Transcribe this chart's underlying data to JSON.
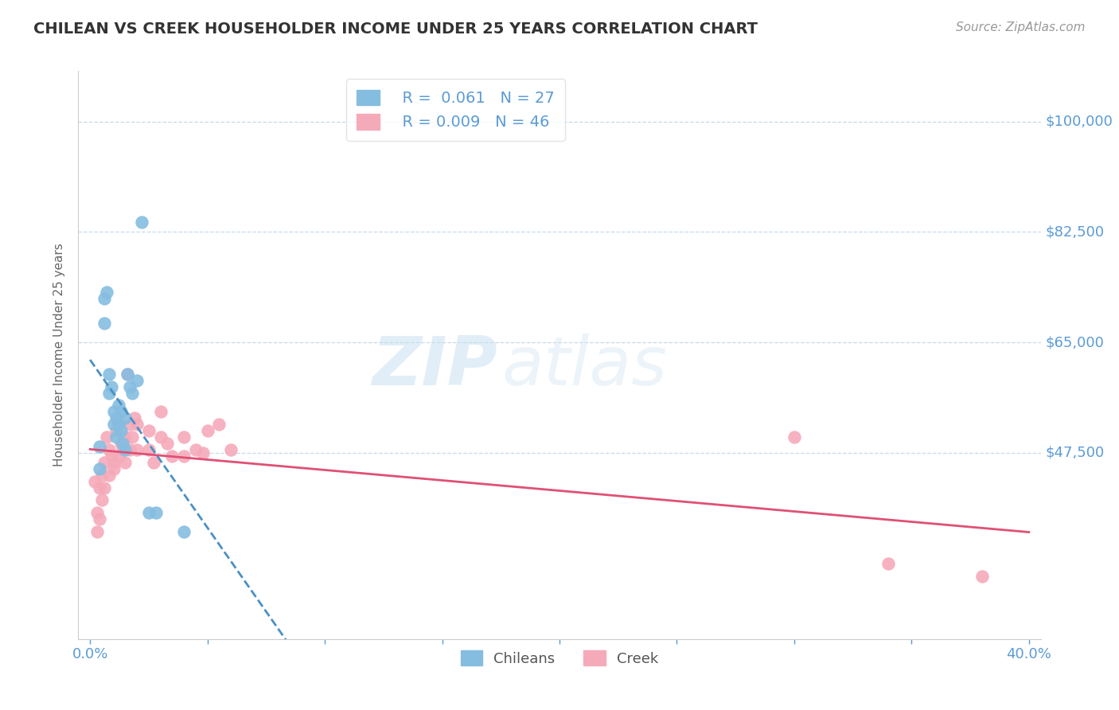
{
  "title": "CHILEAN VS CREEK HOUSEHOLDER INCOME UNDER 25 YEARS CORRELATION CHART",
  "source": "Source: ZipAtlas.com",
  "ylabel": "Householder Income Under 25 years",
  "xlim": [
    -0.005,
    0.405
  ],
  "ylim": [
    18000,
    108000
  ],
  "yticks": [
    47500,
    65000,
    82500,
    100000
  ],
  "ytick_labels": [
    "$47,500",
    "$65,000",
    "$82,500",
    "$100,000"
  ],
  "background_color": "#ffffff",
  "blue_color": "#85bde0",
  "pink_color": "#f5aaba",
  "blue_line_color": "#4a90c4",
  "pink_line_color": "#e05075",
  "axis_color": "#5b9bd5",
  "legend_blue_r": "R =  0.061",
  "legend_blue_n": "N = 27",
  "legend_pink_r": "R = 0.009",
  "legend_pink_n": "N = 46",
  "watermark_zip": "ZIP",
  "watermark_atlas": "atlas",
  "chilean_x": [
    0.004,
    0.004,
    0.006,
    0.006,
    0.007,
    0.008,
    0.008,
    0.009,
    0.01,
    0.01,
    0.011,
    0.011,
    0.012,
    0.012,
    0.013,
    0.013,
    0.014,
    0.015,
    0.015,
    0.016,
    0.017,
    0.018,
    0.02,
    0.022,
    0.025,
    0.028,
    0.04
  ],
  "chilean_y": [
    45000,
    48500,
    72000,
    68000,
    73000,
    60000,
    57000,
    58000,
    54000,
    52000,
    53000,
    50000,
    52000,
    55000,
    51000,
    54000,
    49000,
    48000,
    53000,
    60000,
    58000,
    57000,
    59000,
    84000,
    38000,
    38000,
    35000
  ],
  "creek_x": [
    0.002,
    0.003,
    0.003,
    0.004,
    0.004,
    0.005,
    0.005,
    0.006,
    0.006,
    0.007,
    0.008,
    0.008,
    0.009,
    0.01,
    0.01,
    0.011,
    0.012,
    0.012,
    0.013,
    0.014,
    0.015,
    0.015,
    0.016,
    0.017,
    0.017,
    0.018,
    0.019,
    0.02,
    0.02,
    0.025,
    0.025,
    0.027,
    0.03,
    0.03,
    0.033,
    0.035,
    0.04,
    0.04,
    0.045,
    0.048,
    0.05,
    0.055,
    0.06,
    0.3,
    0.34,
    0.38
  ],
  "creek_y": [
    43000,
    38000,
    35000,
    42000,
    37000,
    40000,
    44000,
    46000,
    42000,
    50000,
    48000,
    44000,
    47000,
    46000,
    45000,
    51000,
    52000,
    47000,
    49000,
    48000,
    50000,
    46000,
    60000,
    52000,
    48000,
    50000,
    53000,
    48000,
    52000,
    48000,
    51000,
    46000,
    50000,
    54000,
    49000,
    47000,
    47000,
    50000,
    48000,
    47500,
    51000,
    52000,
    48000,
    50000,
    30000,
    28000
  ]
}
